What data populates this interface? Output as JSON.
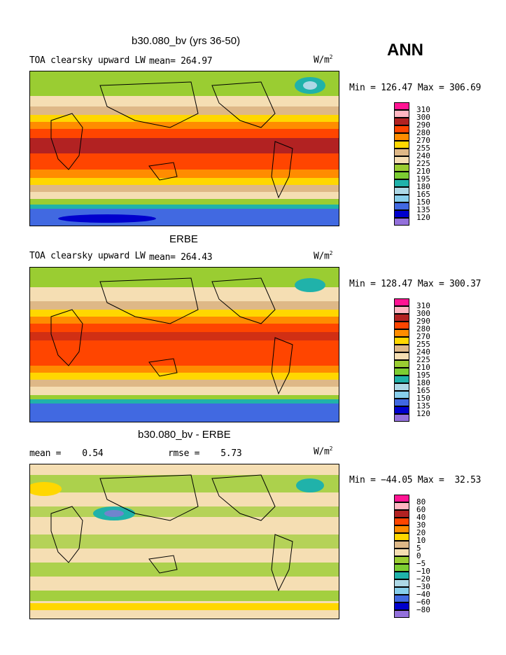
{
  "season": "ANN",
  "units_main": "W/m",
  "units_exp": "2",
  "panels": [
    {
      "title": "b30.080_bv (yrs 36-50)",
      "variable": "TOA clearsky upward LW",
      "mean_label": "mean= 264.97",
      "minmax": "Min = 126.47 Max = 306.69",
      "legend": [
        "310",
        "300",
        "290",
        "280",
        "270",
        "255",
        "240",
        "225",
        "210",
        "195",
        "180",
        "165",
        "150",
        "135",
        "120"
      ]
    },
    {
      "title": "ERBE",
      "variable": "TOA clearsky upward LW",
      "mean_label": "mean= 264.43",
      "minmax": "Min = 128.47 Max = 300.37",
      "legend": [
        "310",
        "300",
        "290",
        "280",
        "270",
        "255",
        "240",
        "225",
        "210",
        "195",
        "180",
        "165",
        "150",
        "135",
        "120"
      ]
    },
    {
      "title": "b30.080_bv - ERBE",
      "mean_label": "mean =    0.54",
      "rmse_label": "rmse =    5.73",
      "minmax": "Min = −44.05 Max =  32.53",
      "legend": [
        "80",
        "60",
        "40",
        "30",
        "20",
        "10",
        "5",
        "0",
        "−5",
        "−10",
        "−20",
        "−30",
        "−40",
        "−60",
        "−80"
      ]
    }
  ],
  "legend_colors": [
    "#ff1493",
    "#ffb6c1",
    "#b22222",
    "#ff4500",
    "#ff8c00",
    "#ffd700",
    "#deb887",
    "#f5deb3",
    "#9acd32",
    "#7ccd32",
    "#20b2aa",
    "#add8e6",
    "#87ceeb",
    "#4169e1",
    "#0000cd",
    "#9370db"
  ]
}
